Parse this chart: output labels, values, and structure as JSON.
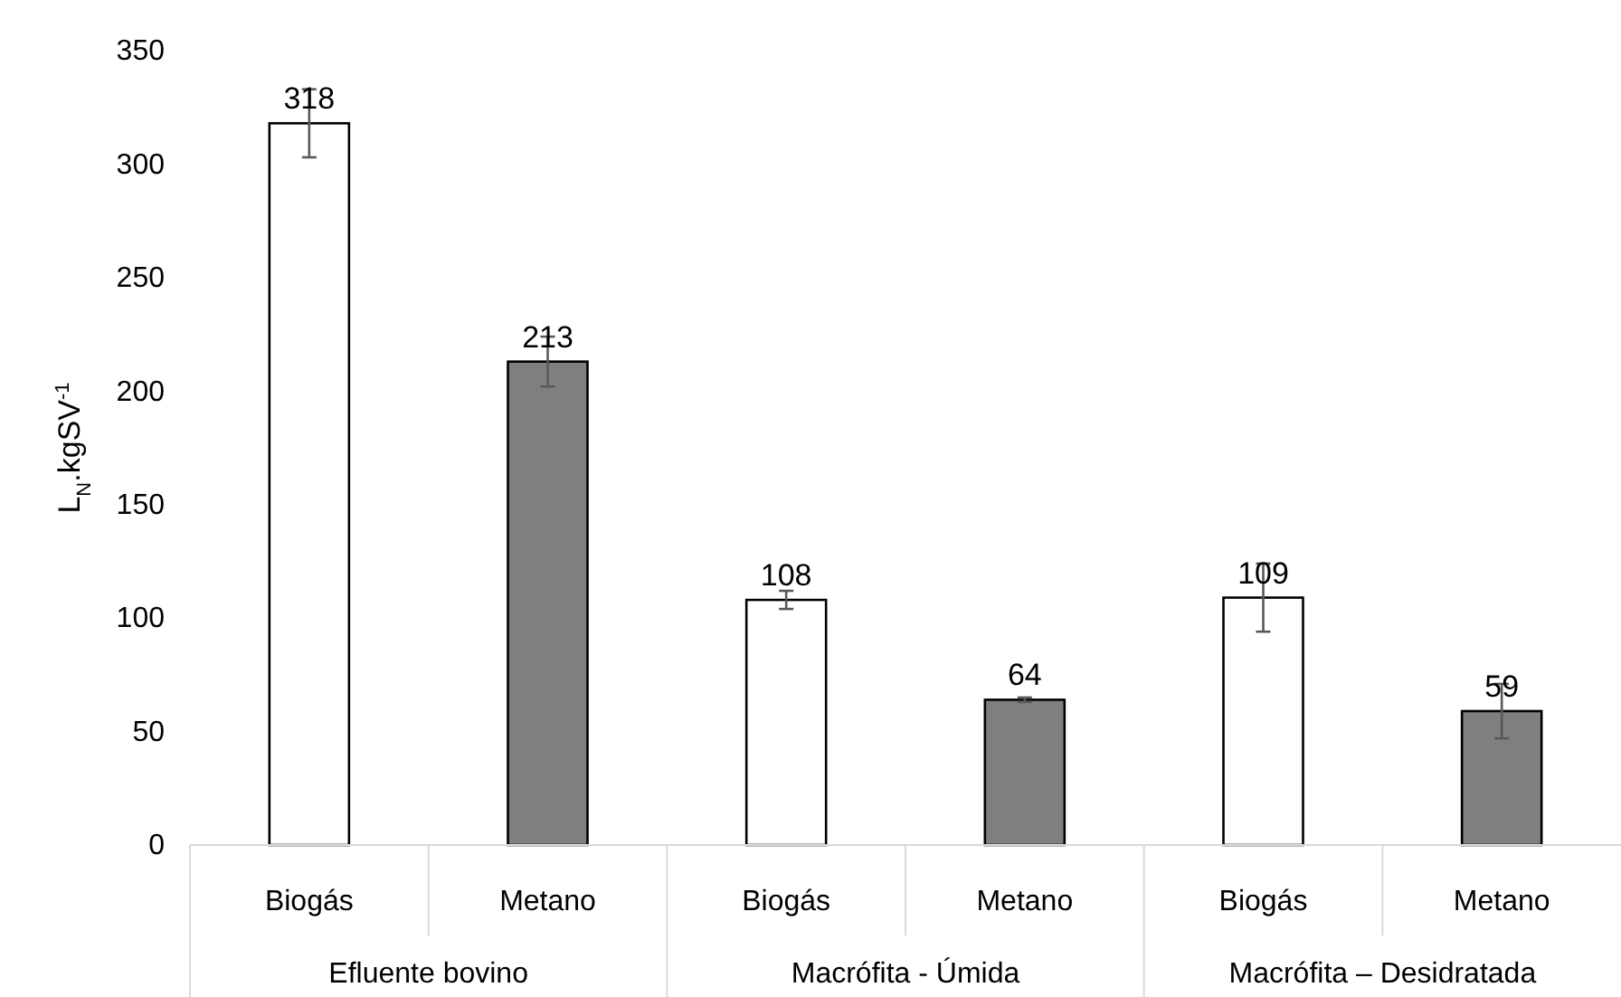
{
  "chart_data": {
    "type": "bar",
    "ylabel": "L$_{N}$.kgSV$^{-1}$",
    "categories": [
      "Efluente bovino",
      "Macrófita - Úmida",
      "Macrófita – Desidratada"
    ],
    "series": [
      {
        "name": "Biogás",
        "color": "#ffffff",
        "values": [
          318,
          108,
          109
        ],
        "errors": [
          15,
          4,
          15
        ]
      },
      {
        "name": "Metano",
        "color": "#7f7f7f",
        "values": [
          213,
          64,
          59
        ],
        "errors": [
          11,
          1,
          12
        ]
      }
    ],
    "ylim": [
      0,
      350
    ],
    "yticks": [
      0,
      50,
      100,
      150,
      200,
      250,
      300,
      350
    ],
    "data_labels": true,
    "grid": false
  }
}
